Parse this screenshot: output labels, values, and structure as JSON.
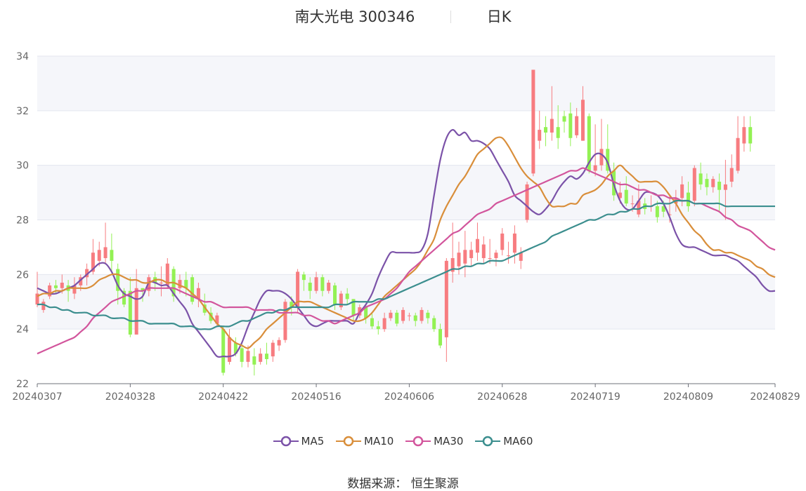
{
  "title": {
    "stock_name": "南大光电 300346",
    "period": "日K"
  },
  "source": {
    "label": "数据来源：",
    "value": "恒生聚源"
  },
  "colors": {
    "up": "#f77c80",
    "down": "#93f154",
    "grid": "#e3e6ef",
    "band": "#f5f6fa",
    "ma5": "#7b52a8",
    "ma10": "#d98e3a",
    "ma30": "#d2559c",
    "ma60": "#3b8e8e"
  },
  "chart_data": {
    "type": "candlestick",
    "ylim": [
      22,
      34
    ],
    "y_ticks": [
      "22",
      "24",
      "26",
      "28",
      "30",
      "32",
      "34"
    ],
    "x_tick_labels": [
      "20240307",
      "20240328",
      "20240422",
      "20240516",
      "20240606",
      "20240628",
      "20240719",
      "20240809",
      "20240829"
    ],
    "x_tick_index": [
      0,
      15,
      30,
      45,
      60,
      75,
      90,
      105,
      119
    ],
    "n_days": 120,
    "candles": [
      [
        24.9,
        25.3,
        24.8,
        26.1
      ],
      [
        24.7,
        25.0,
        24.6,
        25.1
      ],
      [
        25.2,
        25.6,
        25.1,
        25.7
      ],
      [
        25.6,
        25.5,
        25.3,
        25.8
      ],
      [
        25.5,
        25.7,
        25.3,
        26.0
      ],
      [
        25.6,
        25.4,
        25.0,
        25.8
      ],
      [
        25.3,
        25.6,
        25.1,
        25.9
      ],
      [
        25.6,
        25.9,
        25.4,
        26.0
      ],
      [
        25.9,
        26.2,
        25.6,
        26.4
      ],
      [
        26.1,
        26.8,
        26.0,
        27.3
      ],
      [
        26.5,
        26.9,
        26.3,
        27.2
      ],
      [
        26.6,
        27.0,
        26.4,
        27.9
      ],
      [
        26.9,
        26.5,
        26.1,
        27.5
      ],
      [
        26.2,
        25.4,
        24.9,
        26.4
      ],
      [
        25.4,
        24.9,
        24.8,
        25.5
      ],
      [
        25.4,
        23.8,
        23.7,
        25.9
      ],
      [
        23.8,
        25.5,
        23.8,
        26.2
      ],
      [
        25.5,
        25.4,
        25.0,
        25.5
      ],
      [
        25.4,
        25.9,
        25.2,
        26.0
      ],
      [
        25.9,
        25.7,
        25.4,
        26.1
      ],
      [
        25.7,
        25.7,
        25.2,
        26.3
      ],
      [
        25.6,
        26.4,
        25.5,
        26.6
      ],
      [
        26.2,
        25.2,
        25.0,
        26.3
      ],
      [
        25.5,
        25.8,
        25.3,
        26.0
      ],
      [
        25.8,
        25.5,
        25.2,
        26.1
      ],
      [
        25.9,
        25.0,
        24.9,
        26.0
      ],
      [
        25.1,
        25.5,
        24.8,
        25.7
      ],
      [
        24.9,
        24.6,
        24.5,
        25.3
      ],
      [
        24.6,
        24.3,
        24.2,
        24.8
      ],
      [
        24.2,
        24.5,
        24.1,
        24.6
      ],
      [
        24.0,
        22.4,
        22.3,
        24.1
      ],
      [
        22.8,
        23.7,
        22.7,
        24.0
      ],
      [
        23.5,
        23.1,
        23.0,
        23.7
      ],
      [
        23.3,
        22.8,
        22.6,
        23.5
      ],
      [
        22.8,
        23.2,
        22.6,
        23.4
      ],
      [
        23.0,
        22.7,
        22.3,
        23.3
      ],
      [
        22.8,
        23.1,
        22.7,
        23.3
      ],
      [
        23.1,
        22.9,
        22.7,
        23.5
      ],
      [
        23.0,
        23.5,
        22.8,
        23.6
      ],
      [
        23.4,
        23.6,
        23.2,
        23.7
      ],
      [
        23.6,
        25.0,
        23.5,
        25.1
      ],
      [
        25.0,
        24.8,
        24.5,
        25.2
      ],
      [
        24.8,
        26.1,
        24.6,
        26.2
      ],
      [
        26.0,
        25.8,
        25.4,
        26.1
      ],
      [
        25.7,
        25.4,
        25.1,
        25.9
      ],
      [
        25.4,
        25.9,
        25.3,
        26.1
      ],
      [
        25.9,
        25.4,
        25.2,
        26.0
      ],
      [
        25.4,
        25.7,
        25.3,
        25.8
      ],
      [
        25.6,
        24.9,
        24.7,
        25.7
      ],
      [
        24.8,
        25.3,
        24.7,
        25.4
      ],
      [
        25.3,
        25.1,
        24.9,
        25.5
      ],
      [
        25.1,
        24.5,
        24.3,
        25.1
      ],
      [
        24.5,
        24.8,
        24.4,
        24.9
      ],
      [
        24.8,
        24.4,
        24.2,
        24.9
      ],
      [
        24.4,
        24.1,
        24.0,
        24.6
      ],
      [
        24.1,
        24.0,
        23.8,
        24.3
      ],
      [
        24.0,
        24.4,
        23.9,
        24.6
      ],
      [
        24.4,
        24.6,
        24.3,
        24.7
      ],
      [
        24.6,
        24.2,
        24.1,
        24.7
      ],
      [
        24.3,
        24.7,
        24.2,
        24.8
      ],
      [
        24.5,
        24.5,
        24.3,
        24.6
      ],
      [
        24.5,
        24.3,
        24.1,
        24.6
      ],
      [
        24.3,
        24.7,
        24.2,
        24.8
      ],
      [
        24.6,
        24.4,
        24.2,
        24.7
      ],
      [
        24.4,
        24.0,
        23.9,
        24.5
      ],
      [
        24.0,
        23.4,
        23.3,
        24.2
      ],
      [
        23.7,
        26.5,
        22.8,
        26.6
      ],
      [
        26.1,
        26.6,
        25.7,
        27.9
      ],
      [
        26.3,
        26.8,
        26.0,
        27.2
      ],
      [
        26.4,
        26.9,
        25.9,
        27.6
      ],
      [
        26.6,
        26.9,
        26.3,
        27.2
      ],
      [
        26.8,
        27.3,
        26.5,
        27.9
      ],
      [
        26.6,
        27.1,
        26.4,
        27.4
      ],
      [
        26.6,
        26.6,
        26.4,
        27.3
      ],
      [
        26.6,
        26.8,
        26.3,
        26.9
      ],
      [
        26.9,
        27.5,
        26.7,
        27.7
      ],
      [
        26.7,
        26.7,
        26.4,
        27.2
      ],
      [
        26.8,
        27.5,
        26.4,
        27.8
      ],
      [
        26.5,
        26.8,
        26.2,
        27.0
      ],
      [
        28.0,
        29.3,
        27.9,
        29.4
      ],
      [
        29.7,
        33.5,
        29.6,
        33.5
      ],
      [
        30.9,
        31.3,
        30.6,
        32.0
      ],
      [
        31.4,
        31.2,
        30.7,
        31.8
      ],
      [
        31.2,
        31.7,
        30.9,
        32.9
      ],
      [
        31.4,
        31.0,
        30.6,
        32.2
      ],
      [
        31.8,
        31.6,
        31.2,
        32.0
      ],
      [
        31.9,
        31.0,
        30.7,
        32.3
      ],
      [
        31.1,
        31.8,
        31.0,
        32.1
      ],
      [
        30.9,
        32.4,
        30.9,
        32.9
      ],
      [
        31.8,
        29.8,
        29.7,
        31.9
      ],
      [
        29.8,
        30.0,
        29.6,
        31.5
      ],
      [
        30.0,
        30.6,
        29.8,
        31.7
      ],
      [
        30.6,
        29.8,
        29.7,
        31.5
      ],
      [
        29.8,
        28.9,
        28.7,
        30.1
      ],
      [
        28.8,
        29.0,
        28.6,
        29.4
      ],
      [
        29.1,
        28.6,
        28.5,
        29.6
      ],
      [
        28.6,
        28.6,
        28.3,
        28.9
      ],
      [
        28.2,
        28.7,
        28.1,
        29.3
      ],
      [
        28.6,
        28.4,
        28.2,
        28.8
      ],
      [
        28.5,
        28.5,
        28.3,
        28.9
      ],
      [
        28.5,
        28.1,
        27.9,
        28.7
      ],
      [
        28.5,
        28.3,
        28.1,
        28.7
      ],
      [
        28.2,
        28.2,
        27.9,
        28.9
      ],
      [
        28.6,
        28.8,
        28.3,
        29.1
      ],
      [
        28.8,
        29.3,
        28.5,
        29.6
      ],
      [
        29.0,
        28.5,
        28.3,
        29.4
      ],
      [
        28.7,
        29.9,
        28.5,
        30.0
      ],
      [
        29.7,
        29.3,
        29.1,
        30.1
      ],
      [
        29.5,
        29.2,
        28.9,
        29.7
      ],
      [
        29.2,
        29.5,
        29.0,
        29.6
      ],
      [
        29.4,
        29.1,
        28.3,
        29.7
      ],
      [
        29.1,
        29.3,
        28.0,
        30.2
      ],
      [
        29.4,
        29.9,
        29.2,
        30.4
      ],
      [
        29.8,
        31.0,
        29.7,
        31.8
      ],
      [
        30.8,
        31.4,
        30.5,
        31.8
      ],
      [
        31.4,
        30.8,
        30.5,
        31.8
      ]
    ],
    "series": [
      {
        "name": "MA5",
        "color": "#7b52a8",
        "values": [
          25.5,
          25.4,
          25.3,
          25.3,
          25.4,
          25.5,
          25.6,
          25.8,
          26.0,
          26.2,
          26.4,
          26.4,
          26.1,
          25.6,
          25.3,
          25.2,
          25.1,
          25.2,
          25.7,
          25.7,
          25.6,
          25.6,
          25.3,
          25.0,
          24.7,
          24.2,
          23.9,
          23.6,
          23.3,
          23.0,
          23.0,
          23.0,
          23.1,
          23.5,
          24.1,
          24.6,
          25.1,
          25.4,
          25.4,
          25.4,
          25.3,
          25.1,
          24.8,
          24.5,
          24.2,
          24.1,
          24.2,
          24.3,
          24.3,
          24.3,
          24.3,
          24.2,
          24.6,
          24.9,
          25.3,
          25.9,
          26.4,
          26.8,
          26.8,
          26.8,
          26.8,
          26.8,
          26.9,
          27.5,
          28.9,
          30.2,
          31.0,
          31.3,
          31.1,
          31.2,
          30.9,
          30.9,
          30.8,
          30.6,
          30.2,
          29.8,
          29.4,
          28.9,
          28.7,
          28.5,
          28.3,
          28.2,
          28.4,
          28.7,
          29.1,
          29.4,
          29.6,
          29.5,
          29.7,
          30.1,
          30.4,
          30.4,
          30.1,
          29.3,
          28.7,
          28.4,
          28.4,
          28.7,
          29.0,
          29.0,
          28.9,
          28.6,
          28.1,
          27.5,
          27.1,
          27.0,
          27.0,
          26.9,
          26.8,
          26.7,
          26.7,
          26.7,
          26.6,
          26.5,
          26.3,
          26.1,
          25.9,
          25.6,
          25.4,
          25.4
        ]
      },
      {
        "name": "MA10",
        "color": "#d98e3a",
        "values": [
          25.2,
          25.3,
          25.3,
          25.4,
          25.4,
          25.5,
          25.5,
          25.5,
          25.5,
          25.6,
          25.8,
          25.9,
          26.0,
          26.0,
          25.9,
          25.8,
          25.8,
          25.7,
          25.7,
          25.8,
          25.8,
          25.7,
          25.7,
          25.6,
          25.5,
          25.3,
          25.1,
          24.8,
          24.5,
          24.2,
          24.0,
          23.7,
          23.5,
          23.4,
          23.3,
          23.5,
          23.7,
          24.0,
          24.2,
          24.4,
          24.6,
          24.8,
          25.0,
          25.0,
          25.0,
          24.9,
          24.8,
          24.7,
          24.6,
          24.5,
          24.4,
          24.3,
          24.3,
          24.4,
          24.6,
          24.9,
          25.2,
          25.4,
          25.6,
          25.8,
          26.0,
          26.2,
          26.5,
          26.9,
          27.3,
          28.0,
          28.5,
          28.9,
          29.3,
          29.6,
          30.0,
          30.4,
          30.6,
          30.8,
          31.0,
          31.0,
          30.7,
          30.3,
          29.9,
          29.6,
          29.4,
          29.2,
          28.8,
          28.5,
          28.5,
          28.5,
          28.6,
          28.6,
          28.9,
          29.0,
          29.1,
          29.3,
          29.6,
          29.8,
          30.0,
          29.8,
          29.6,
          29.4,
          29.4,
          29.4,
          29.4,
          29.2,
          28.9,
          28.6,
          28.2,
          27.9,
          27.6,
          27.4,
          27.1,
          26.9,
          26.9,
          26.8,
          26.8,
          26.7,
          26.6,
          26.5,
          26.3,
          26.2,
          26.0,
          25.9
        ]
      },
      {
        "name": "MA30",
        "color": "#d2559c",
        "values": [
          23.1,
          23.2,
          23.3,
          23.4,
          23.5,
          23.6,
          23.7,
          23.9,
          24.1,
          24.4,
          24.6,
          24.8,
          25.0,
          25.1,
          25.2,
          25.3,
          25.4,
          25.4,
          25.5,
          25.5,
          25.5,
          25.5,
          25.5,
          25.4,
          25.3,
          25.2,
          25.1,
          25.0,
          25.0,
          24.9,
          24.8,
          24.8,
          24.8,
          24.8,
          24.8,
          24.7,
          24.7,
          24.7,
          24.7,
          24.6,
          24.6,
          24.6,
          24.6,
          24.5,
          24.5,
          24.4,
          24.3,
          24.3,
          24.2,
          24.3,
          24.4,
          24.5,
          24.6,
          24.8,
          24.9,
          25.0,
          25.1,
          25.3,
          25.5,
          25.8,
          26.1,
          26.3,
          26.5,
          26.7,
          26.9,
          27.1,
          27.3,
          27.5,
          27.6,
          27.8,
          28.0,
          28.2,
          28.3,
          28.4,
          28.6,
          28.7,
          28.8,
          28.9,
          29.0,
          29.1,
          29.2,
          29.3,
          29.4,
          29.5,
          29.6,
          29.7,
          29.8,
          29.8,
          29.9,
          29.8,
          29.7,
          29.6,
          29.5,
          29.4,
          29.3,
          29.3,
          29.2,
          29.1,
          29.1,
          29.0,
          28.9,
          28.9,
          28.8,
          28.8,
          28.7,
          28.7,
          28.6,
          28.6,
          28.5,
          28.4,
          28.3,
          28.1,
          28.0,
          27.8,
          27.7,
          27.6,
          27.4,
          27.2,
          27.0,
          26.9
        ]
      },
      {
        "name": "MA60",
        "color": "#3b8e8e",
        "values": [
          24.9,
          24.9,
          24.8,
          24.8,
          24.7,
          24.7,
          24.6,
          24.6,
          24.6,
          24.5,
          24.5,
          24.5,
          24.4,
          24.4,
          24.4,
          24.3,
          24.3,
          24.3,
          24.2,
          24.2,
          24.2,
          24.2,
          24.2,
          24.1,
          24.1,
          24.1,
          24.0,
          24.0,
          24.0,
          24.1,
          24.1,
          24.1,
          24.2,
          24.3,
          24.3,
          24.4,
          24.5,
          24.6,
          24.6,
          24.7,
          24.7,
          24.8,
          24.8,
          24.8,
          24.8,
          24.8,
          24.8,
          24.8,
          24.9,
          24.9,
          24.9,
          25.0,
          25.0,
          25.0,
          25.0,
          25.1,
          25.1,
          25.2,
          25.3,
          25.4,
          25.5,
          25.6,
          25.7,
          25.8,
          25.9,
          26.0,
          26.1,
          26.2,
          26.2,
          26.3,
          26.3,
          26.4,
          26.4,
          26.5,
          26.5,
          26.5,
          26.6,
          26.7,
          26.8,
          26.9,
          27.0,
          27.1,
          27.2,
          27.4,
          27.5,
          27.6,
          27.7,
          27.8,
          27.9,
          28.0,
          28.0,
          28.1,
          28.2,
          28.2,
          28.3,
          28.3,
          28.4,
          28.4,
          28.5,
          28.5,
          28.6,
          28.6,
          28.6,
          28.7,
          28.7,
          28.7,
          28.6,
          28.6,
          28.6,
          28.6,
          28.6,
          28.5,
          28.5,
          28.5,
          28.5,
          28.5,
          28.5,
          28.5,
          28.5,
          28.5
        ]
      }
    ],
    "legend": {
      "position": "bottom",
      "items": [
        "MA5",
        "MA10",
        "MA30",
        "MA60"
      ]
    }
  }
}
